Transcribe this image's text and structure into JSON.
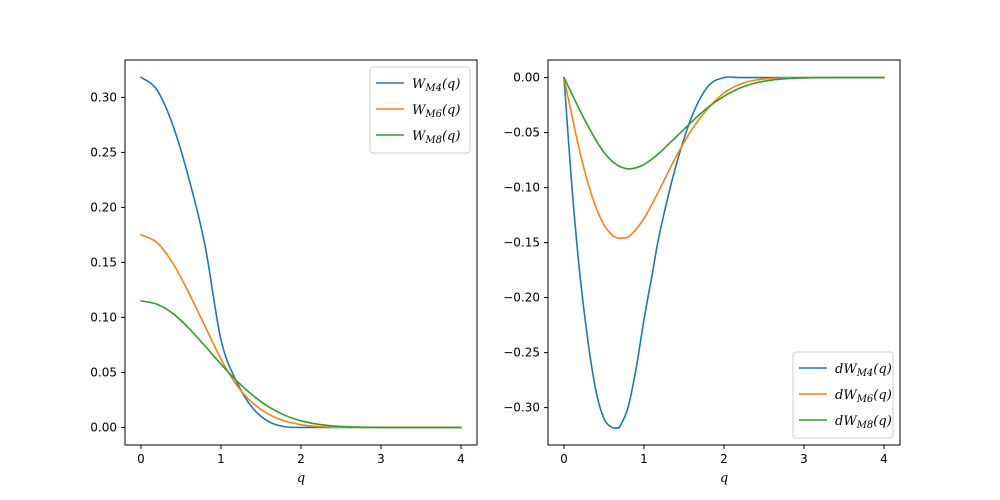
{
  "chart_data": [
    {
      "type": "line",
      "xlabel": "q",
      "ylabel": "",
      "xlim": [
        -0.2,
        4.2
      ],
      "ylim": [
        -0.016,
        0.334
      ],
      "xticks": [
        0,
        1,
        2,
        3,
        4
      ],
      "xtick_labels": [
        "0",
        "1",
        "2",
        "3",
        "4"
      ],
      "yticks": [
        0.0,
        0.05,
        0.1,
        0.15,
        0.2,
        0.25,
        0.3
      ],
      "ytick_labels": [
        "0.00",
        "0.05",
        "0.10",
        "0.15",
        "0.20",
        "0.25",
        "0.30"
      ],
      "grid": false,
      "legend_position": "upper-right",
      "x": [
        0,
        0.2,
        0.4,
        0.6,
        0.8,
        1.0,
        1.2,
        1.4,
        1.6,
        1.8,
        2.0,
        2.2,
        2.4,
        2.6,
        2.8,
        3.0,
        3.2,
        3.4,
        3.6,
        3.8,
        4.0
      ],
      "series": [
        {
          "name": "W_M4(q)",
          "name_base": "W",
          "name_sub": "M4",
          "name_arg": "(q)",
          "color": "#1f77b4",
          "values": [
            0.3183,
            0.3068,
            0.2744,
            0.2258,
            0.1655,
            0.0796,
            0.0408,
            0.0172,
            0.0051,
            0.0006,
            0.0,
            0.0,
            0.0,
            0.0,
            0.0,
            0.0,
            0.0,
            0.0,
            0.0,
            0.0,
            0.0
          ]
        },
        {
          "name": "W_M6(q)",
          "name_base": "W",
          "name_sub": "M6",
          "name_arg": "(q)",
          "color": "#ff7f0e",
          "values": [
            0.175,
            0.168,
            0.149,
            0.122,
            0.092,
            0.062,
            0.038,
            0.022,
            0.0118,
            0.0058,
            0.0025,
            0.0009,
            0.0003,
            0.0001,
            0.0,
            0.0,
            0.0,
            0.0,
            0.0,
            0.0,
            0.0
          ]
        },
        {
          "name": "W_M8(q)",
          "name_base": "W",
          "name_sub": "M8",
          "name_arg": "(q)",
          "color": "#2ca02c",
          "values": [
            0.115,
            0.112,
            0.1035,
            0.09,
            0.074,
            0.0575,
            0.042,
            0.029,
            0.0185,
            0.011,
            0.006,
            0.003,
            0.0013,
            0.0005,
            0.0002,
            0.0,
            0.0,
            0.0,
            0.0,
            0.0,
            0.0
          ]
        }
      ]
    },
    {
      "type": "line",
      "xlabel": "q",
      "ylabel": "",
      "xlim": [
        -0.2,
        4.2
      ],
      "ylim": [
        -0.334,
        0.016
      ],
      "xticks": [
        0,
        1,
        2,
        3,
        4
      ],
      "xtick_labels": [
        "0",
        "1",
        "2",
        "3",
        "4"
      ],
      "yticks": [
        0.0,
        -0.05,
        -0.1,
        -0.15,
        -0.2,
        -0.25,
        -0.3
      ],
      "ytick_labels": [
        "0.00",
        "−0.05",
        "−0.10",
        "−0.15",
        "−0.20",
        "−0.25",
        "−0.30"
      ],
      "grid": false,
      "legend_position": "lower-right",
      "x": [
        0,
        0.1,
        0.2,
        0.3,
        0.4,
        0.5,
        0.6,
        0.667,
        0.7,
        0.8,
        0.9,
        1.0,
        1.1,
        1.2,
        1.4,
        1.6,
        1.8,
        2.0,
        2.2,
        2.4,
        2.6,
        2.8,
        3.0,
        3.2,
        3.4,
        3.6,
        3.8,
        4.0
      ],
      "series": [
        {
          "name": "dW_M4(q)",
          "name_base": "dW",
          "name_sub": "M4",
          "name_arg": "(q)",
          "color": "#1f77b4",
          "values": [
            0.0,
            -0.1,
            -0.18,
            -0.24,
            -0.285,
            -0.31,
            -0.318,
            -0.3183,
            -0.317,
            -0.3,
            -0.265,
            -0.22,
            -0.18,
            -0.14,
            -0.08,
            -0.035,
            -0.008,
            0.0,
            0.0,
            0.0,
            0.0,
            0.0,
            0.0,
            0.0,
            0.0,
            0.0,
            0.0,
            0.0
          ]
        },
        {
          "name": "dW_M6(q)",
          "name_base": "dW",
          "name_sub": "M6",
          "name_arg": "(q)",
          "color": "#ff7f0e",
          "values": [
            0.0,
            -0.035,
            -0.068,
            -0.096,
            -0.118,
            -0.134,
            -0.143,
            -0.1458,
            -0.146,
            -0.145,
            -0.138,
            -0.128,
            -0.115,
            -0.101,
            -0.072,
            -0.047,
            -0.028,
            -0.014,
            -0.006,
            -0.0022,
            -0.0007,
            -0.0002,
            0.0,
            0.0,
            0.0,
            0.0,
            0.0,
            0.0
          ]
        },
        {
          "name": "dW_M8(q)",
          "name_base": "dW",
          "name_sub": "M8",
          "name_arg": "(q)",
          "color": "#2ca02c",
          "values": [
            0.0,
            -0.015,
            -0.03,
            -0.044,
            -0.057,
            -0.068,
            -0.076,
            -0.0795,
            -0.081,
            -0.083,
            -0.082,
            -0.079,
            -0.074,
            -0.068,
            -0.054,
            -0.04,
            -0.027,
            -0.017,
            -0.0095,
            -0.0048,
            -0.0022,
            -0.0009,
            -0.0003,
            -0.0001,
            0.0,
            0.0,
            0.0,
            0.0
          ]
        }
      ]
    }
  ]
}
